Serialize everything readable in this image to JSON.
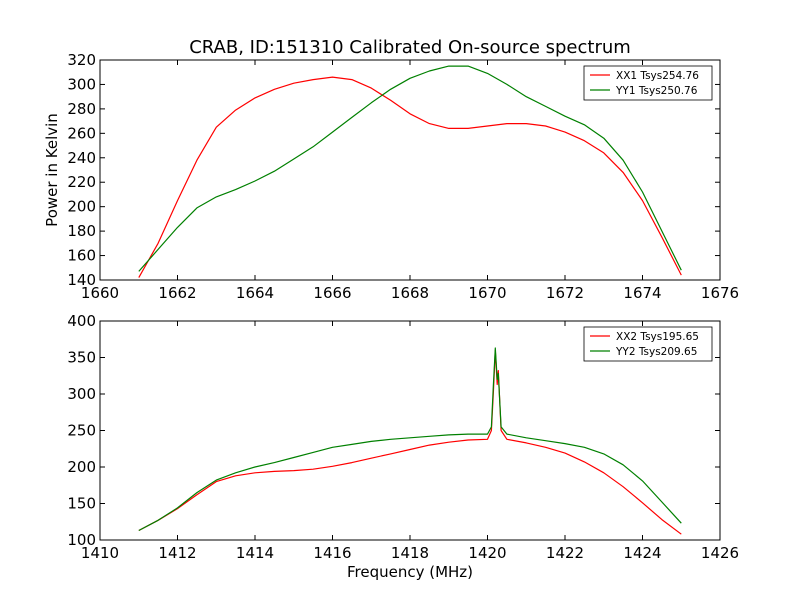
{
  "figure": {
    "title": "CRAB, ID:151310 Calibrated On-source spectrum",
    "ylabel": "Power in Kelvin",
    "xlabel": "Frequency (MHz)"
  },
  "colors": {
    "red": "#ff0000",
    "green": "#008000"
  },
  "chart_data": [
    {
      "type": "line",
      "xlim": [
        1660,
        1676
      ],
      "ylim": [
        140,
        320
      ],
      "xticks": [
        1660,
        1662,
        1664,
        1666,
        1668,
        1670,
        1672,
        1674,
        1676
      ],
      "yticks": [
        140,
        160,
        180,
        200,
        220,
        240,
        260,
        280,
        300,
        320
      ],
      "legend_position": "top-right",
      "grid": false,
      "series": [
        {
          "name": "XX1 Tsys254.76",
          "color": "#ff0000",
          "points": [
            [
              1661,
              142
            ],
            [
              1661.5,
              170
            ],
            [
              1662,
              205
            ],
            [
              1662.5,
              238
            ],
            [
              1663,
              265
            ],
            [
              1663.5,
              279
            ],
            [
              1664,
              289
            ],
            [
              1664.5,
              296
            ],
            [
              1665,
              301
            ],
            [
              1665.5,
              304
            ],
            [
              1666,
              306
            ],
            [
              1666.5,
              304
            ],
            [
              1667,
              297
            ],
            [
              1667.5,
              287
            ],
            [
              1668,
              276
            ],
            [
              1668.5,
              268
            ],
            [
              1669,
              264
            ],
            [
              1669.5,
              264
            ],
            [
              1670,
              266
            ],
            [
              1670.5,
              268
            ],
            [
              1671,
              268
            ],
            [
              1671.5,
              266
            ],
            [
              1672,
              261
            ],
            [
              1672.5,
              254
            ],
            [
              1673,
              244
            ],
            [
              1673.5,
              228
            ],
            [
              1674,
              205
            ],
            [
              1674.5,
              175
            ],
            [
              1675,
              144
            ]
          ]
        },
        {
          "name": "YY1 Tsys250.76",
          "color": "#008000",
          "points": [
            [
              1661,
              147
            ],
            [
              1661.5,
              165
            ],
            [
              1662,
              183
            ],
            [
              1662.5,
              199
            ],
            [
              1663,
              208
            ],
            [
              1663.5,
              214
            ],
            [
              1664,
              221
            ],
            [
              1664.5,
              229
            ],
            [
              1665,
              239
            ],
            [
              1665.5,
              249
            ],
            [
              1666,
              261
            ],
            [
              1666.5,
              273
            ],
            [
              1667,
              285
            ],
            [
              1667.5,
              296
            ],
            [
              1668,
              305
            ],
            [
              1668.5,
              311
            ],
            [
              1669,
              315
            ],
            [
              1669.5,
              315
            ],
            [
              1670,
              309
            ],
            [
              1670.5,
              300
            ],
            [
              1671,
              290
            ],
            [
              1671.5,
              282
            ],
            [
              1672,
              274
            ],
            [
              1672.5,
              267
            ],
            [
              1673,
              256
            ],
            [
              1673.5,
              238
            ],
            [
              1674,
              212
            ],
            [
              1674.5,
              180
            ],
            [
              1675,
              148
            ]
          ]
        }
      ]
    },
    {
      "type": "line",
      "xlim": [
        1410,
        1426
      ],
      "ylim": [
        100,
        400
      ],
      "xticks": [
        1410,
        1412,
        1414,
        1416,
        1418,
        1420,
        1422,
        1424,
        1426
      ],
      "yticks": [
        100,
        150,
        200,
        250,
        300,
        350,
        400
      ],
      "legend_position": "top-right",
      "grid": false,
      "series": [
        {
          "name": "XX2 Tsys195.65",
          "color": "#ff0000",
          "points": [
            [
              1411,
              113
            ],
            [
              1411.5,
              127
            ],
            [
              1412,
              143
            ],
            [
              1412.5,
              162
            ],
            [
              1413,
              180
            ],
            [
              1413.5,
              188
            ],
            [
              1414,
              192
            ],
            [
              1414.5,
              194
            ],
            [
              1415,
              195
            ],
            [
              1415.5,
              197
            ],
            [
              1416,
              201
            ],
            [
              1416.5,
              206
            ],
            [
              1417,
              212
            ],
            [
              1417.5,
              218
            ],
            [
              1418,
              224
            ],
            [
              1418.5,
              230
            ],
            [
              1419,
              234
            ],
            [
              1419.5,
              237
            ],
            [
              1420,
              238
            ],
            [
              1420.1,
              250
            ],
            [
              1420.15,
              300
            ],
            [
              1420.2,
              360
            ],
            [
              1420.25,
              313
            ],
            [
              1420.28,
              332
            ],
            [
              1420.35,
              250
            ],
            [
              1420.5,
              238
            ],
            [
              1421,
              233
            ],
            [
              1421.5,
              227
            ],
            [
              1422,
              219
            ],
            [
              1422.5,
              207
            ],
            [
              1423,
              192
            ],
            [
              1423.5,
              173
            ],
            [
              1424,
              151
            ],
            [
              1424.5,
              128
            ],
            [
              1425,
              108
            ]
          ]
        },
        {
          "name": "YY2 Tsys209.65",
          "color": "#008000",
          "points": [
            [
              1411,
              113
            ],
            [
              1411.5,
              127
            ],
            [
              1412,
              144
            ],
            [
              1412.5,
              165
            ],
            [
              1413,
              182
            ],
            [
              1413.5,
              192
            ],
            [
              1414,
              200
            ],
            [
              1414.5,
              206
            ],
            [
              1415,
              213
            ],
            [
              1415.5,
              220
            ],
            [
              1416,
              227
            ],
            [
              1416.5,
              231
            ],
            [
              1417,
              235
            ],
            [
              1417.5,
              238
            ],
            [
              1418,
              240
            ],
            [
              1418.5,
              242
            ],
            [
              1419,
              244
            ],
            [
              1419.5,
              245
            ],
            [
              1420,
              245
            ],
            [
              1420.1,
              255
            ],
            [
              1420.15,
              310
            ],
            [
              1420.2,
              363
            ],
            [
              1420.25,
              320
            ],
            [
              1420.28,
              328
            ],
            [
              1420.35,
              255
            ],
            [
              1420.5,
              245
            ],
            [
              1421,
              240
            ],
            [
              1421.5,
              236
            ],
            [
              1422,
              232
            ],
            [
              1422.5,
              227
            ],
            [
              1423,
              218
            ],
            [
              1423.5,
              203
            ],
            [
              1424,
              181
            ],
            [
              1424.5,
              152
            ],
            [
              1425,
              123
            ]
          ]
        }
      ]
    }
  ]
}
